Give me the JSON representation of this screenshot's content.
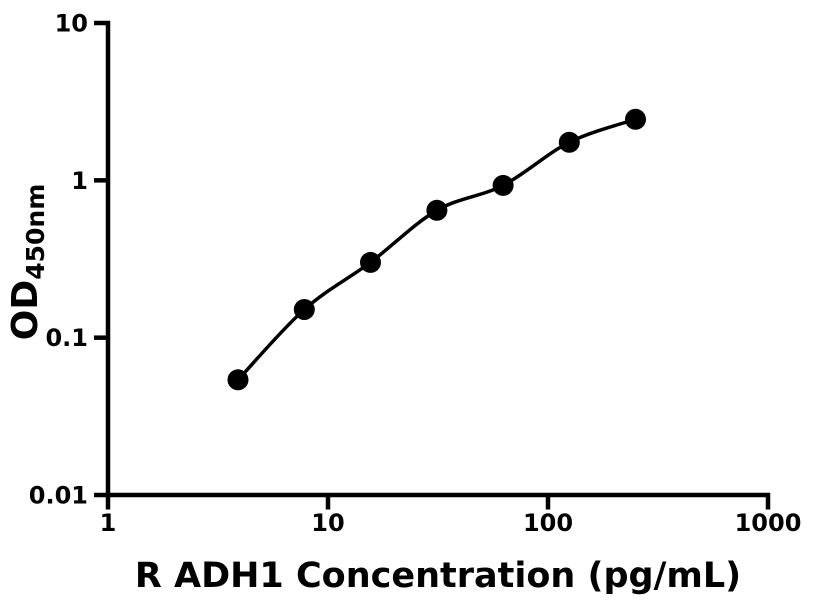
{
  "figure": {
    "background": "#ffffff",
    "ink_color": "#000000"
  },
  "chart_data": {
    "type": "scatter",
    "title": "",
    "xlabel": "R ADH1 Concentration (pg/mL)",
    "ylabel_main": "OD",
    "ylabel_sub": "450nm",
    "x_scale": "log",
    "y_scale": "log",
    "xlim": [
      1,
      1000
    ],
    "ylim": [
      0.01,
      10
    ],
    "grid": false,
    "legend": null,
    "curve_color": "#000000",
    "marker_color": "#000000",
    "x": [
      3.9,
      7.8,
      15.6,
      31.25,
      62.5,
      125,
      250
    ],
    "y": [
      0.054,
      0.151,
      0.301,
      0.645,
      0.929,
      1.745,
      2.443
    ],
    "x_ticks": [
      {
        "value": 1,
        "label": "1"
      },
      {
        "value": 10,
        "label": "10"
      },
      {
        "value": 100,
        "label": "100"
      },
      {
        "value": 1000,
        "label": "1000"
      }
    ],
    "y_ticks": [
      {
        "value": 0.01,
        "label": "0.01"
      },
      {
        "value": 0.1,
        "label": "0.1"
      },
      {
        "value": 1,
        "label": "1"
      },
      {
        "value": 10,
        "label": "10"
      }
    ]
  }
}
